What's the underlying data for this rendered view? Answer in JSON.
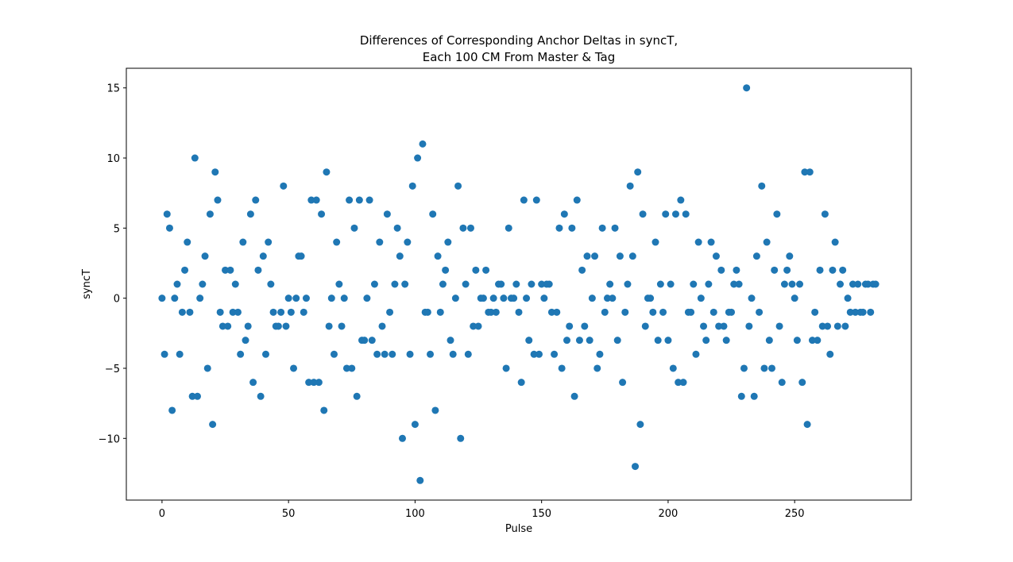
{
  "chart_data": {
    "type": "scatter",
    "title": [
      "Differences of Corresponding Anchor Deltas in syncT,",
      "Each 100 CM From Master & Tag"
    ],
    "x_label": "Pulse",
    "y_label": "syncT",
    "color": "#1f77b4",
    "grid": false,
    "xlim": [
      -14.1,
      296.1
    ],
    "ylim": [
      -14.4,
      16.4
    ],
    "xticks": [
      0,
      50,
      100,
      150,
      200,
      250
    ],
    "yticks": [
      {
        "value": -10,
        "label": "−10"
      },
      {
        "value": -5,
        "label": "−5"
      },
      0,
      5,
      10,
      15
    ],
    "x": [
      0,
      1,
      2,
      3,
      4,
      5,
      6,
      7,
      8,
      9,
      10,
      11,
      12,
      13,
      14,
      15,
      16,
      17,
      18,
      19,
      20,
      21,
      22,
      23,
      24,
      25,
      26,
      27,
      28,
      29,
      30,
      31,
      32,
      33,
      34,
      35,
      36,
      37,
      38,
      39,
      40,
      41,
      42,
      43,
      44,
      45,
      46,
      47,
      48,
      49,
      50,
      51,
      52,
      53,
      54,
      55,
      56,
      57,
      58,
      59,
      60,
      61,
      62,
      63,
      64,
      65,
      66,
      67,
      68,
      69,
      70,
      71,
      72,
      73,
      74,
      75,
      76,
      77,
      78,
      79,
      80,
      81,
      82,
      83,
      84,
      85,
      86,
      87,
      88,
      89,
      90,
      91,
      92,
      93,
      94,
      95,
      96,
      97,
      98,
      99,
      100,
      101,
      102,
      103,
      104,
      105,
      106,
      107,
      108,
      109,
      110,
      111,
      112,
      113,
      114,
      115,
      116,
      117,
      118,
      119,
      120,
      121,
      122,
      123,
      124,
      125,
      126,
      127,
      128,
      129,
      130,
      131,
      132,
      133,
      134,
      135,
      136,
      137,
      138,
      139,
      140,
      141,
      142,
      143,
      144,
      145,
      146,
      147,
      148,
      149,
      150,
      151,
      152,
      153,
      154,
      155,
      156,
      157,
      158,
      159,
      160,
      161,
      162,
      163,
      164,
      165,
      166,
      167,
      168,
      169,
      170,
      171,
      172,
      173,
      174,
      175,
      176,
      177,
      178,
      179,
      180,
      181,
      182,
      183,
      184,
      185,
      186,
      187,
      188,
      189,
      190,
      191,
      192,
      193,
      194,
      195,
      196,
      197,
      198,
      199,
      200,
      201,
      202,
      203,
      204,
      205,
      206,
      207,
      208,
      209,
      210,
      211,
      212,
      213,
      214,
      215,
      216,
      217,
      218,
      219,
      220,
      221,
      222,
      223,
      224,
      225,
      226,
      227,
      228,
      229,
      230,
      231,
      232,
      233,
      234,
      235,
      236,
      237,
      238,
      239,
      240,
      241,
      242,
      243,
      244,
      245,
      246,
      247,
      248,
      249,
      250,
      251,
      252,
      253,
      254,
      255,
      256,
      257,
      258,
      259,
      260,
      261,
      262,
      263,
      264,
      265,
      266,
      267,
      268,
      269,
      270,
      271,
      272,
      273,
      274,
      275,
      276,
      277,
      278,
      279,
      280,
      281,
      282
    ],
    "values": [
      0,
      -4,
      6,
      5,
      -8,
      0,
      1,
      -4,
      -1,
      2,
      4,
      -1,
      -7,
      10,
      -7,
      0,
      1,
      3,
      -5,
      6,
      -9,
      9,
      7,
      -1,
      -2,
      2,
      -2,
      2,
      -1,
      1,
      -1,
      -4,
      4,
      -3,
      -2,
      6,
      -6,
      7,
      2,
      -7,
      3,
      -4,
      4,
      1,
      -1,
      -2,
      -2,
      -1,
      8,
      -2,
      0,
      -1,
      -5,
      0,
      3,
      3,
      -1,
      0,
      -6,
      7,
      -6,
      7,
      -6,
      6,
      -8,
      9,
      -2,
      0,
      -4,
      4,
      1,
      -2,
      0,
      -5,
      7,
      -5,
      5,
      -7,
      7,
      -3,
      -3,
      0,
      7,
      -3,
      1,
      -4,
      4,
      -2,
      -4,
      6,
      -1,
      -4,
      1,
      5,
      3,
      -10,
      1,
      4,
      -4,
      8,
      -9,
      10,
      -13,
      11,
      -1,
      -1,
      -4,
      6,
      -8,
      3,
      -1,
      1,
      2,
      4,
      -3,
      -4,
      0,
      8,
      -10,
      5,
      1,
      -4,
      5,
      -2,
      2,
      -2,
      0,
      0,
      2,
      -1,
      -1,
      0,
      -1,
      1,
      1,
      0,
      -5,
      5,
      0,
      0,
      1,
      -1,
      -6,
      7,
      0,
      -3,
      1,
      -4,
      7,
      -4,
      1,
      0,
      1,
      1,
      -1,
      -4,
      -1,
      5,
      -5,
      6,
      -3,
      -2,
      5,
      -7,
      7,
      -3,
      2,
      -2,
      3,
      -3,
      0,
      3,
      -5,
      -4,
      5,
      -1,
      0,
      1,
      0,
      5,
      -3,
      3,
      -6,
      -1,
      1,
      8,
      3,
      -12,
      9,
      -9,
      6,
      -2,
      0,
      0,
      -1,
      4,
      -3,
      1,
      -1,
      6,
      -3,
      1,
      -5,
      6,
      -6,
      7,
      -6,
      6,
      -1,
      -1,
      1,
      -4,
      4,
      0,
      -2,
      -3,
      1,
      4,
      -1,
      3,
      -2,
      2,
      -2,
      -3,
      -1,
      -1,
      1,
      2,
      1,
      -7,
      -5,
      15,
      -2,
      0,
      -7,
      3,
      -1,
      8,
      -5,
      4,
      -3,
      -5,
      2,
      6,
      -2,
      -6,
      1,
      2,
      3,
      1,
      0,
      -3,
      1,
      -6,
      9,
      -9,
      9,
      -3,
      -1,
      -3,
      2,
      -2,
      6,
      -2,
      -4,
      2,
      4,
      -2,
      1,
      2,
      -2,
      0,
      -1,
      1,
      -1,
      1,
      -1,
      -1,
      1,
      1,
      -1,
      1,
      1
    ]
  }
}
